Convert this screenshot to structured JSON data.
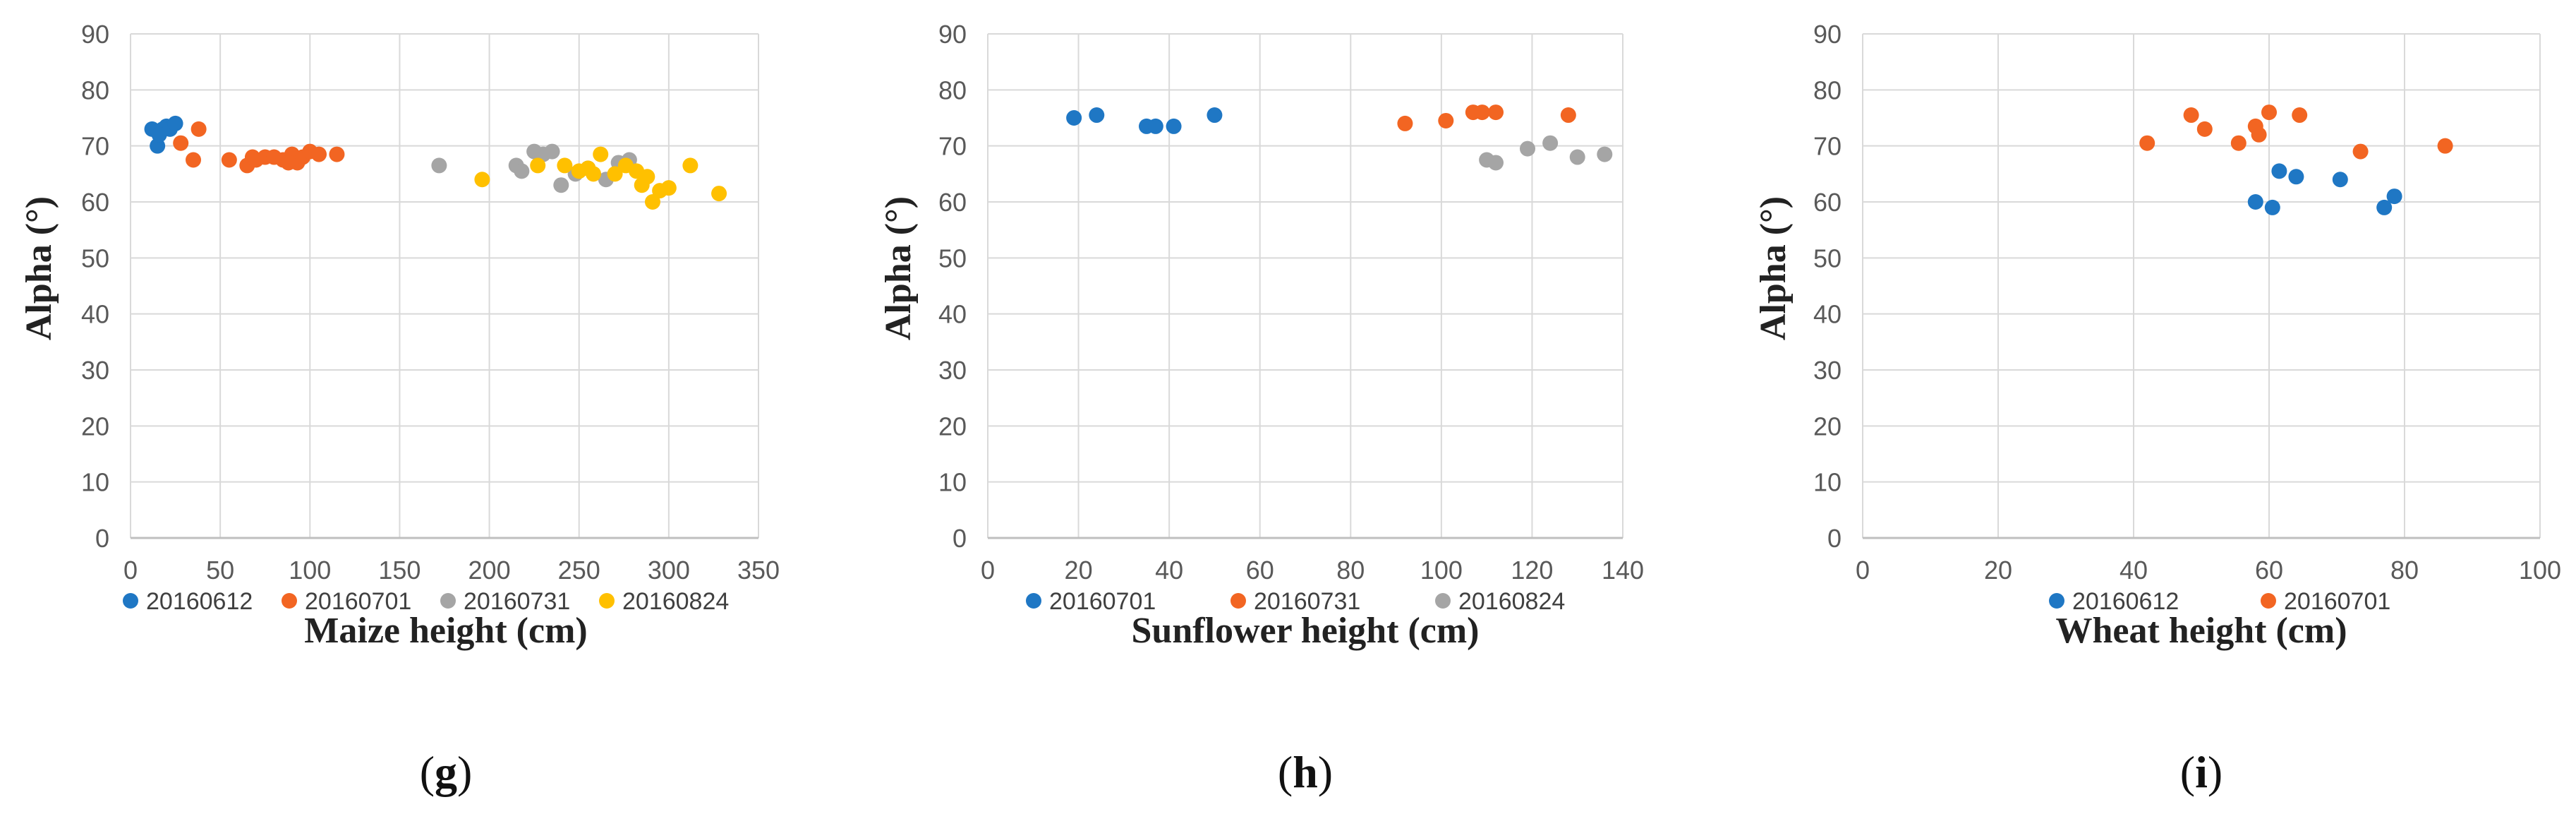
{
  "colors": {
    "blue": "#1f77c4",
    "orange": "#f26522",
    "gray": "#a5a5a5",
    "yellow": "#ffc000",
    "grid": "#d9d9d9",
    "axis": "#bfbfbf"
  },
  "chart_data": [
    {
      "type": "scatter",
      "panel": "g",
      "xlabel": "Maize height (cm)",
      "ylabel": "Alpha (°)",
      "xlim": [
        0,
        350
      ],
      "ylim": [
        0,
        90
      ],
      "xticks": [
        "0",
        "50",
        "100",
        "150",
        "200",
        "250",
        "300",
        "350"
      ],
      "yticks": [
        "0",
        "10",
        "20",
        "30",
        "40",
        "50",
        "60",
        "70",
        "80",
        "90"
      ],
      "series": [
        {
          "name": "20160612",
          "color": "#1f77c4",
          "x": [
            12,
            15,
            18,
            20,
            22,
            25,
            16
          ],
          "y": [
            73,
            70,
            73,
            73.5,
            73,
            74,
            72
          ]
        },
        {
          "name": "20160701",
          "color": "#f26522",
          "x": [
            28,
            35,
            38,
            55,
            65,
            68,
            75,
            80,
            85,
            90,
            93,
            96,
            100,
            105,
            115,
            70,
            88
          ],
          "y": [
            70.5,
            67.5,
            73,
            67.5,
            66.5,
            68,
            68,
            68,
            67.5,
            68.5,
            67,
            68,
            69,
            68.5,
            68.5,
            67.5,
            67
          ]
        },
        {
          "name": "20160731",
          "color": "#a5a5a5",
          "x": [
            172,
            215,
            218,
            225,
            230,
            235,
            240,
            248,
            255,
            265,
            272,
            278
          ],
          "y": [
            66.5,
            66.5,
            65.5,
            69,
            68.5,
            69,
            63,
            65,
            66,
            64,
            67,
            67.5
          ]
        },
        {
          "name": "20160824",
          "color": "#ffc000",
          "x": [
            196,
            227,
            242,
            250,
            255,
            262,
            270,
            276,
            282,
            288,
            291,
            295,
            300,
            312,
            328,
            258,
            285
          ],
          "y": [
            64,
            66.5,
            66.5,
            65.5,
            66,
            68.5,
            65,
            66.5,
            65.5,
            64.5,
            60,
            62,
            62.5,
            66.5,
            61.5,
            65,
            63
          ]
        }
      ],
      "legend": [
        "20160612",
        "20160701",
        "20160731",
        "20160824"
      ]
    },
    {
      "type": "scatter",
      "panel": "h",
      "xlabel": "Sunflower height (cm)",
      "ylabel": "Alpha (°)",
      "xlim": [
        0,
        140
      ],
      "ylim": [
        0,
        90
      ],
      "xticks": [
        "0",
        "20",
        "40",
        "60",
        "80",
        "100",
        "120",
        "140"
      ],
      "yticks": [
        "0",
        "10",
        "20",
        "30",
        "40",
        "50",
        "60",
        "70",
        "80",
        "90"
      ],
      "series": [
        {
          "name": "20160701",
          "color": "#1f77c4",
          "x": [
            19,
            24,
            35,
            37,
            41,
            50
          ],
          "y": [
            75,
            75.5,
            73.5,
            73.5,
            73.5,
            75.5
          ]
        },
        {
          "name": "20160731",
          "color": "#f26522",
          "x": [
            92,
            101,
            107,
            109,
            112,
            128
          ],
          "y": [
            74,
            74.5,
            76,
            76,
            76,
            75.5
          ]
        },
        {
          "name": "20160824",
          "color": "#a5a5a5",
          "x": [
            110,
            112,
            119,
            124,
            130,
            136
          ],
          "y": [
            67.5,
            67,
            69.5,
            70.5,
            68,
            68.5
          ]
        }
      ],
      "legend": [
        "20160701",
        "20160731",
        "20160824"
      ]
    },
    {
      "type": "scatter",
      "panel": "i",
      "xlabel": "Wheat height (cm)",
      "ylabel": "Alpha (°)",
      "xlim": [
        0,
        100
      ],
      "ylim": [
        0,
        90
      ],
      "xticks": [
        "0",
        "20",
        "40",
        "60",
        "80",
        "100"
      ],
      "yticks": [
        "0",
        "10",
        "20",
        "30",
        "40",
        "50",
        "60",
        "70",
        "80",
        "90"
      ],
      "series": [
        {
          "name": "20160612",
          "color": "#1f77c4",
          "x": [
            58,
            60.5,
            61.5,
            64,
            70.5,
            77,
            78.5
          ],
          "y": [
            60,
            59,
            65.5,
            64.5,
            64,
            59,
            61
          ]
        },
        {
          "name": "20160701",
          "color": "#f26522",
          "x": [
            42,
            48.5,
            50.5,
            55.5,
            58,
            58.5,
            60,
            64.5,
            73.5,
            86
          ],
          "y": [
            70.5,
            75.5,
            73,
            70.5,
            73.5,
            72,
            76,
            75.5,
            69,
            70
          ]
        }
      ],
      "legend": [
        "20160612",
        "20160701"
      ]
    }
  ],
  "panel_labels": [
    "g",
    "h",
    "i"
  ]
}
